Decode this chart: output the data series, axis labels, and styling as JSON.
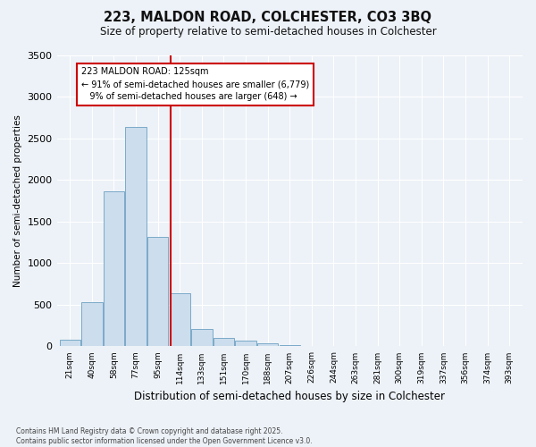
{
  "title_line1": "223, MALDON ROAD, COLCHESTER, CO3 3BQ",
  "title_line2": "Size of property relative to semi-detached houses in Colchester",
  "xlabel": "Distribution of semi-detached houses by size in Colchester",
  "ylabel": "Number of semi-detached properties",
  "bins": [
    "21sqm",
    "40sqm",
    "58sqm",
    "77sqm",
    "95sqm",
    "114sqm",
    "133sqm",
    "151sqm",
    "170sqm",
    "188sqm",
    "207sqm",
    "226sqm",
    "244sqm",
    "263sqm",
    "281sqm",
    "300sqm",
    "319sqm",
    "337sqm",
    "356sqm",
    "374sqm",
    "393sqm"
  ],
  "bar_heights": [
    80,
    530,
    1860,
    2640,
    1310,
    640,
    210,
    100,
    70,
    40,
    20,
    5,
    2,
    1,
    0,
    0,
    0,
    0,
    0,
    0,
    0
  ],
  "bar_color": "#ccdded",
  "bar_edge_color": "#7aaac8",
  "red_line_color": "#cc0000",
  "annotation_line1": "223 MALDON ROAD: 125sqm",
  "annotation_line2": "← 91% of semi-detached houses are smaller (6,779)",
  "annotation_line3": "9% of semi-detached houses are larger (648) →",
  "ylim": [
    0,
    3500
  ],
  "yticks": [
    0,
    500,
    1000,
    1500,
    2000,
    2500,
    3000,
    3500
  ],
  "background_color": "#edf2f8",
  "grid_color": "#ffffff",
  "footnote": "Contains HM Land Registry data © Crown copyright and database right 2025.\nContains public sector information licensed under the Open Government Licence v3.0."
}
